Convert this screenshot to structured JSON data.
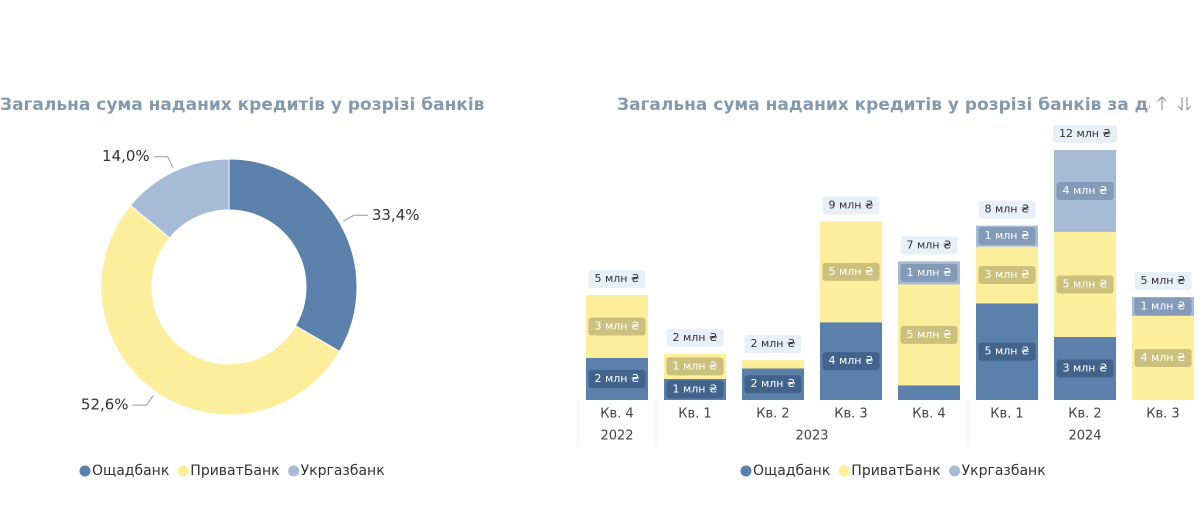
{
  "chart_data": [
    {
      "type": "donut",
      "title": "Загальна сума наданих кредитів у розрізі банків",
      "categories": [
        "Ощадбанк",
        "ПриватБанк",
        "Укргазбанк"
      ],
      "values": [
        33.4,
        52.6,
        14.0
      ],
      "value_labels": [
        "33,4%",
        "52,6%",
        "14,0%"
      ],
      "colors": [
        "#5b80ac",
        "#fdee9c",
        "#a5bbd6"
      ]
    },
    {
      "type": "stacked-bar",
      "title": "Загальна сума наданих кредитів у розрізі банків за дато",
      "categories": [
        "Кв. 4",
        "Кв. 1",
        "Кв. 2",
        "Кв. 3",
        "Кв. 4",
        "Кв. 1",
        "Кв. 2",
        "Кв. 3"
      ],
      "years": [
        "2022",
        "2023",
        null,
        null,
        null,
        "2024",
        null,
        null
      ],
      "series": [
        {
          "name": "Ощадбанк",
          "color": "#5b80ac",
          "values": [
            2.0,
            1.0,
            1.5,
            3.7,
            0.7,
            4.6,
            3.0,
            null
          ],
          "value_labels": [
            "2 млн ₴",
            "1 млн ₴",
            "2 млн ₴",
            "4 млн ₴",
            null,
            "5 млн ₴",
            "3 млн ₴",
            null
          ]
        },
        {
          "name": "ПриватБанк",
          "color": "#fdee9c",
          "values": [
            3.0,
            1.2,
            0.4,
            4.8,
            4.8,
            2.7,
            5.0,
            4.0
          ],
          "value_labels": [
            "3 млн ₴",
            "1 млн ₴",
            null,
            "5 млн ₴",
            "5 млн ₴",
            "3 млн ₴",
            "5 млн ₴",
            "4 млн ₴"
          ]
        },
        {
          "name": "Укргазбанк",
          "color": "#a5bbd6",
          "values": [
            null,
            null,
            null,
            null,
            1.1,
            1.0,
            3.9,
            0.9
          ],
          "value_labels": [
            null,
            null,
            null,
            null,
            "1 млн ₴",
            "1 млн ₴",
            "4 млн ₴",
            "1 млн ₴"
          ]
        }
      ],
      "totals": {
        "values": [
          5.0,
          2.2,
          1.9,
          8.5,
          6.6,
          8.3,
          11.9,
          4.9
        ],
        "value_labels": [
          "5 млн ₴",
          "2 млн ₴",
          "2 млн ₴",
          "9 млн ₴",
          "7 млн ₴",
          "8 млн ₴",
          "12 млн ₴",
          "5 млн ₴"
        ]
      }
    }
  ]
}
